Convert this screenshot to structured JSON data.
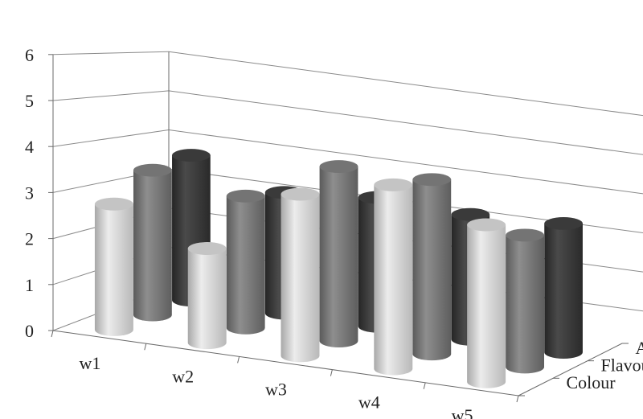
{
  "chart_data": {
    "type": "bar",
    "subtype": "3d-cylinder",
    "title": "",
    "categories": [
      "w1",
      "w2",
      "w3",
      "w4",
      "w5"
    ],
    "series": [
      {
        "name": "Colour",
        "color": "#d9d9d9",
        "values": [
          2.8,
          2.1,
          3.6,
          4.1,
          3.5
        ]
      },
      {
        "name": "Flavour",
        "color": "#808080",
        "values": [
          3.4,
          3.1,
          4.1,
          4.1,
          3.1
        ]
      },
      {
        "name": "Aroma",
        "color": "#404040",
        "values": [
          3.6,
          3.0,
          3.2,
          3.1,
          3.2
        ]
      }
    ],
    "yticks": [
      "0",
      "1",
      "2",
      "3",
      "4",
      "5",
      "6"
    ],
    "ylim": [
      0,
      6
    ],
    "grid": true,
    "legend": "right (depth axis labels)"
  }
}
